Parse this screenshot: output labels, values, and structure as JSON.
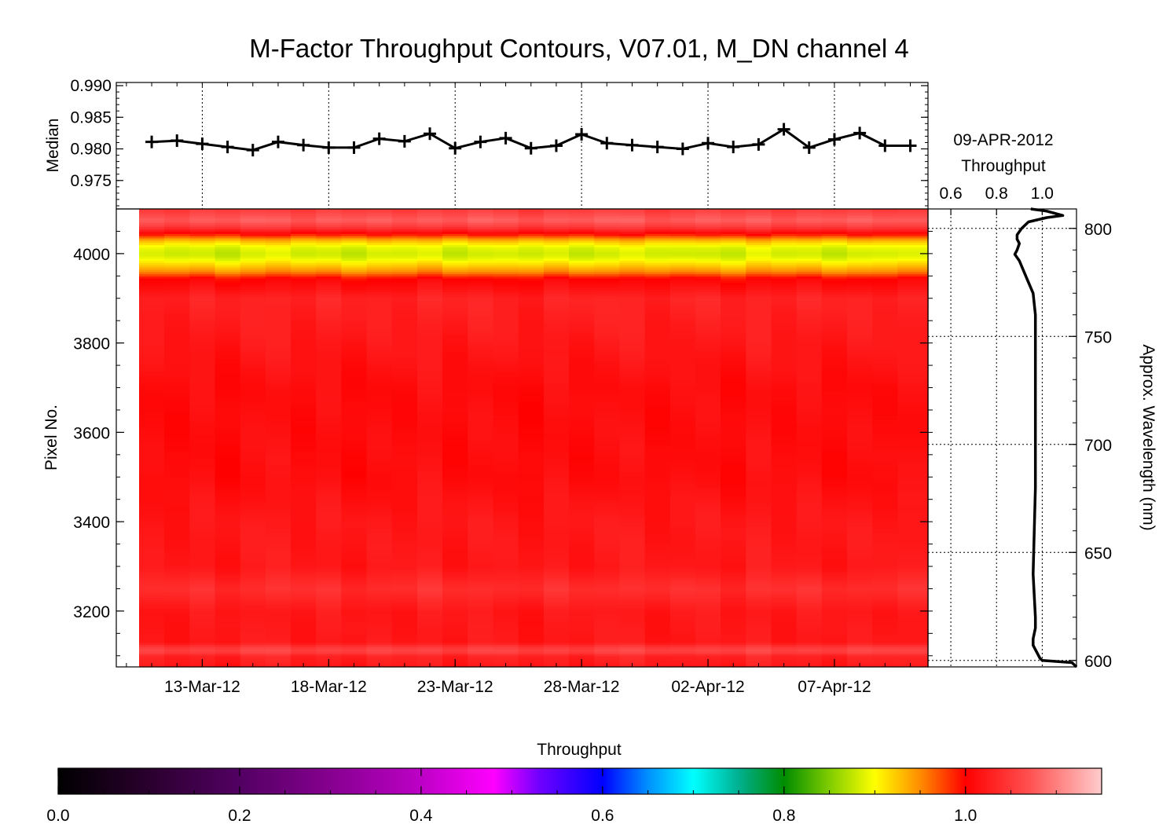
{
  "figure": {
    "title": "M-Factor Throughput Contours, V07.01, M_DN channel 4"
  },
  "chart_data": [
    {
      "id": "median-panel",
      "type": "line",
      "ylabel": "Median",
      "xlabel": "",
      "ylim": [
        0.9705,
        0.9905
      ],
      "yticks": [
        "0.975",
        "0.980",
        "0.985",
        "0.990"
      ],
      "x_range_days": [
        -1.4,
        30.7
      ],
      "x_note": "days relative to 11-Mar-12",
      "grid": "vertical dotted at date ticks",
      "series": [
        {
          "x": [
            0,
            1,
            2,
            3,
            4,
            5,
            6,
            7,
            8,
            9,
            10,
            11,
            12,
            13,
            14,
            15,
            16,
            17,
            18,
            19,
            20,
            21,
            22,
            23,
            24,
            25,
            26,
            27,
            28,
            29,
            30
          ],
          "values": [
            0.9811,
            0.9813,
            0.9808,
            0.9803,
            0.9798,
            0.9811,
            0.9806,
            0.9802,
            0.9802,
            0.9816,
            0.9812,
            0.9824,
            0.9801,
            0.9811,
            0.9817,
            0.9801,
            0.9805,
            0.9823,
            0.9809,
            0.9806,
            0.9803,
            0.98,
            0.9809,
            0.9803,
            0.9807,
            0.9831,
            0.9802,
            0.9815,
            0.9825,
            0.9805,
            0.9805
          ]
        }
      ]
    },
    {
      "id": "contour-panel",
      "type": "heatmap",
      "ylabel": "Pixel No.",
      "ylim": [
        3075,
        4100
      ],
      "yticks": [
        "3200",
        "3400",
        "3600",
        "3800",
        "4000"
      ],
      "xticks": [
        "13-Mar-12",
        "18-Mar-12",
        "23-Mar-12",
        "28-Mar-12",
        "02-Apr-12",
        "07-Apr-12"
      ],
      "xtick_days": [
        2,
        7,
        12,
        17,
        22,
        27
      ],
      "value_label": "Throughput",
      "profile_pixels": [
        3075,
        3100,
        3110,
        3120,
        3130,
        3200,
        3250,
        3300,
        3400,
        3500,
        3600,
        3700,
        3800,
        3900,
        3945,
        3960,
        3975,
        3990,
        4000,
        4015,
        4030,
        4045,
        4060,
        4075,
        4100
      ],
      "profile_values": [
        1.02,
        1.03,
        1.06,
        1.05,
        1.02,
        1.02,
        1.04,
        1.02,
        1.02,
        1.01,
        1.01,
        1.01,
        1.02,
        1.03,
        1.0,
        0.95,
        0.92,
        0.89,
        0.88,
        0.89,
        0.93,
        1.0,
        1.05,
        1.08,
        1.05
      ],
      "column_offsets": [
        0.0,
        -0.004,
        0.003,
        -0.006,
        0.002,
        0.005,
        -0.003,
        0.004,
        -0.005,
        0.001,
        -0.002,
        0.006,
        -0.004,
        0.003,
        0.0,
        -0.006,
        0.004,
        -0.003,
        0.002,
        0.005,
        -0.004,
        0.001,
        0.003,
        -0.005,
        0.006,
        -0.002,
        0.004,
        -0.004,
        0.002,
        -0.001,
        0.003
      ]
    },
    {
      "id": "profile-panel",
      "type": "line",
      "title_lines": [
        "09-APR-2012",
        "Throughput"
      ],
      "xticks": [
        "0.6",
        "0.8",
        "1.0"
      ],
      "xlim": [
        0.5,
        1.15
      ],
      "right_axis_label": "Approx. Wavelength (nm)",
      "right_ticks": [
        "600",
        "650",
        "700",
        "750",
        "800"
      ],
      "right_tick_values_nm": [
        600,
        650,
        700,
        750,
        800
      ],
      "wavelength_range_nm": [
        597,
        809
      ],
      "series": [
        {
          "wavelength_nm": [
            597,
            599,
            600,
            601,
            603,
            605,
            607,
            610,
            615,
            620,
            640,
            680,
            720,
            760,
            770,
            775,
            780,
            785,
            788,
            790,
            793,
            795,
            797,
            800,
            803,
            805,
            806,
            808,
            809
          ],
          "throughput": [
            1.15,
            1.13,
            1.0,
            0.99,
            0.98,
            0.97,
            0.96,
            0.96,
            0.97,
            0.97,
            0.96,
            0.97,
            0.97,
            0.97,
            0.96,
            0.94,
            0.92,
            0.9,
            0.88,
            0.89,
            0.9,
            0.89,
            0.89,
            0.91,
            0.94,
            1.02,
            1.09,
            1.02,
            0.95
          ]
        }
      ]
    },
    {
      "id": "colorbar",
      "type": "heatmap",
      "title": "Throughput",
      "xticks": [
        "0.0",
        "0.2",
        "0.4",
        "0.6",
        "0.8",
        "1.0"
      ],
      "xlim": [
        0.0,
        1.15
      ],
      "color_stops": [
        {
          "v": 0.0,
          "color": "#000000"
        },
        {
          "v": 0.1,
          "color": "#2a002e"
        },
        {
          "v": 0.2,
          "color": "#520062"
        },
        {
          "v": 0.3,
          "color": "#86008f"
        },
        {
          "v": 0.4,
          "color": "#bd00c6"
        },
        {
          "v": 0.48,
          "color": "#ff00ff"
        },
        {
          "v": 0.53,
          "color": "#7000ff"
        },
        {
          "v": 0.6,
          "color": "#0000ff"
        },
        {
          "v": 0.65,
          "color": "#0090ff"
        },
        {
          "v": 0.7,
          "color": "#00ffff"
        },
        {
          "v": 0.75,
          "color": "#00b090"
        },
        {
          "v": 0.8,
          "color": "#008c00"
        },
        {
          "v": 0.85,
          "color": "#80cc00"
        },
        {
          "v": 0.9,
          "color": "#ffff00"
        },
        {
          "v": 0.95,
          "color": "#ff8c00"
        },
        {
          "v": 1.0,
          "color": "#ff0000"
        },
        {
          "v": 1.07,
          "color": "#ff5050"
        },
        {
          "v": 1.15,
          "color": "#ffcccc"
        }
      ]
    }
  ]
}
